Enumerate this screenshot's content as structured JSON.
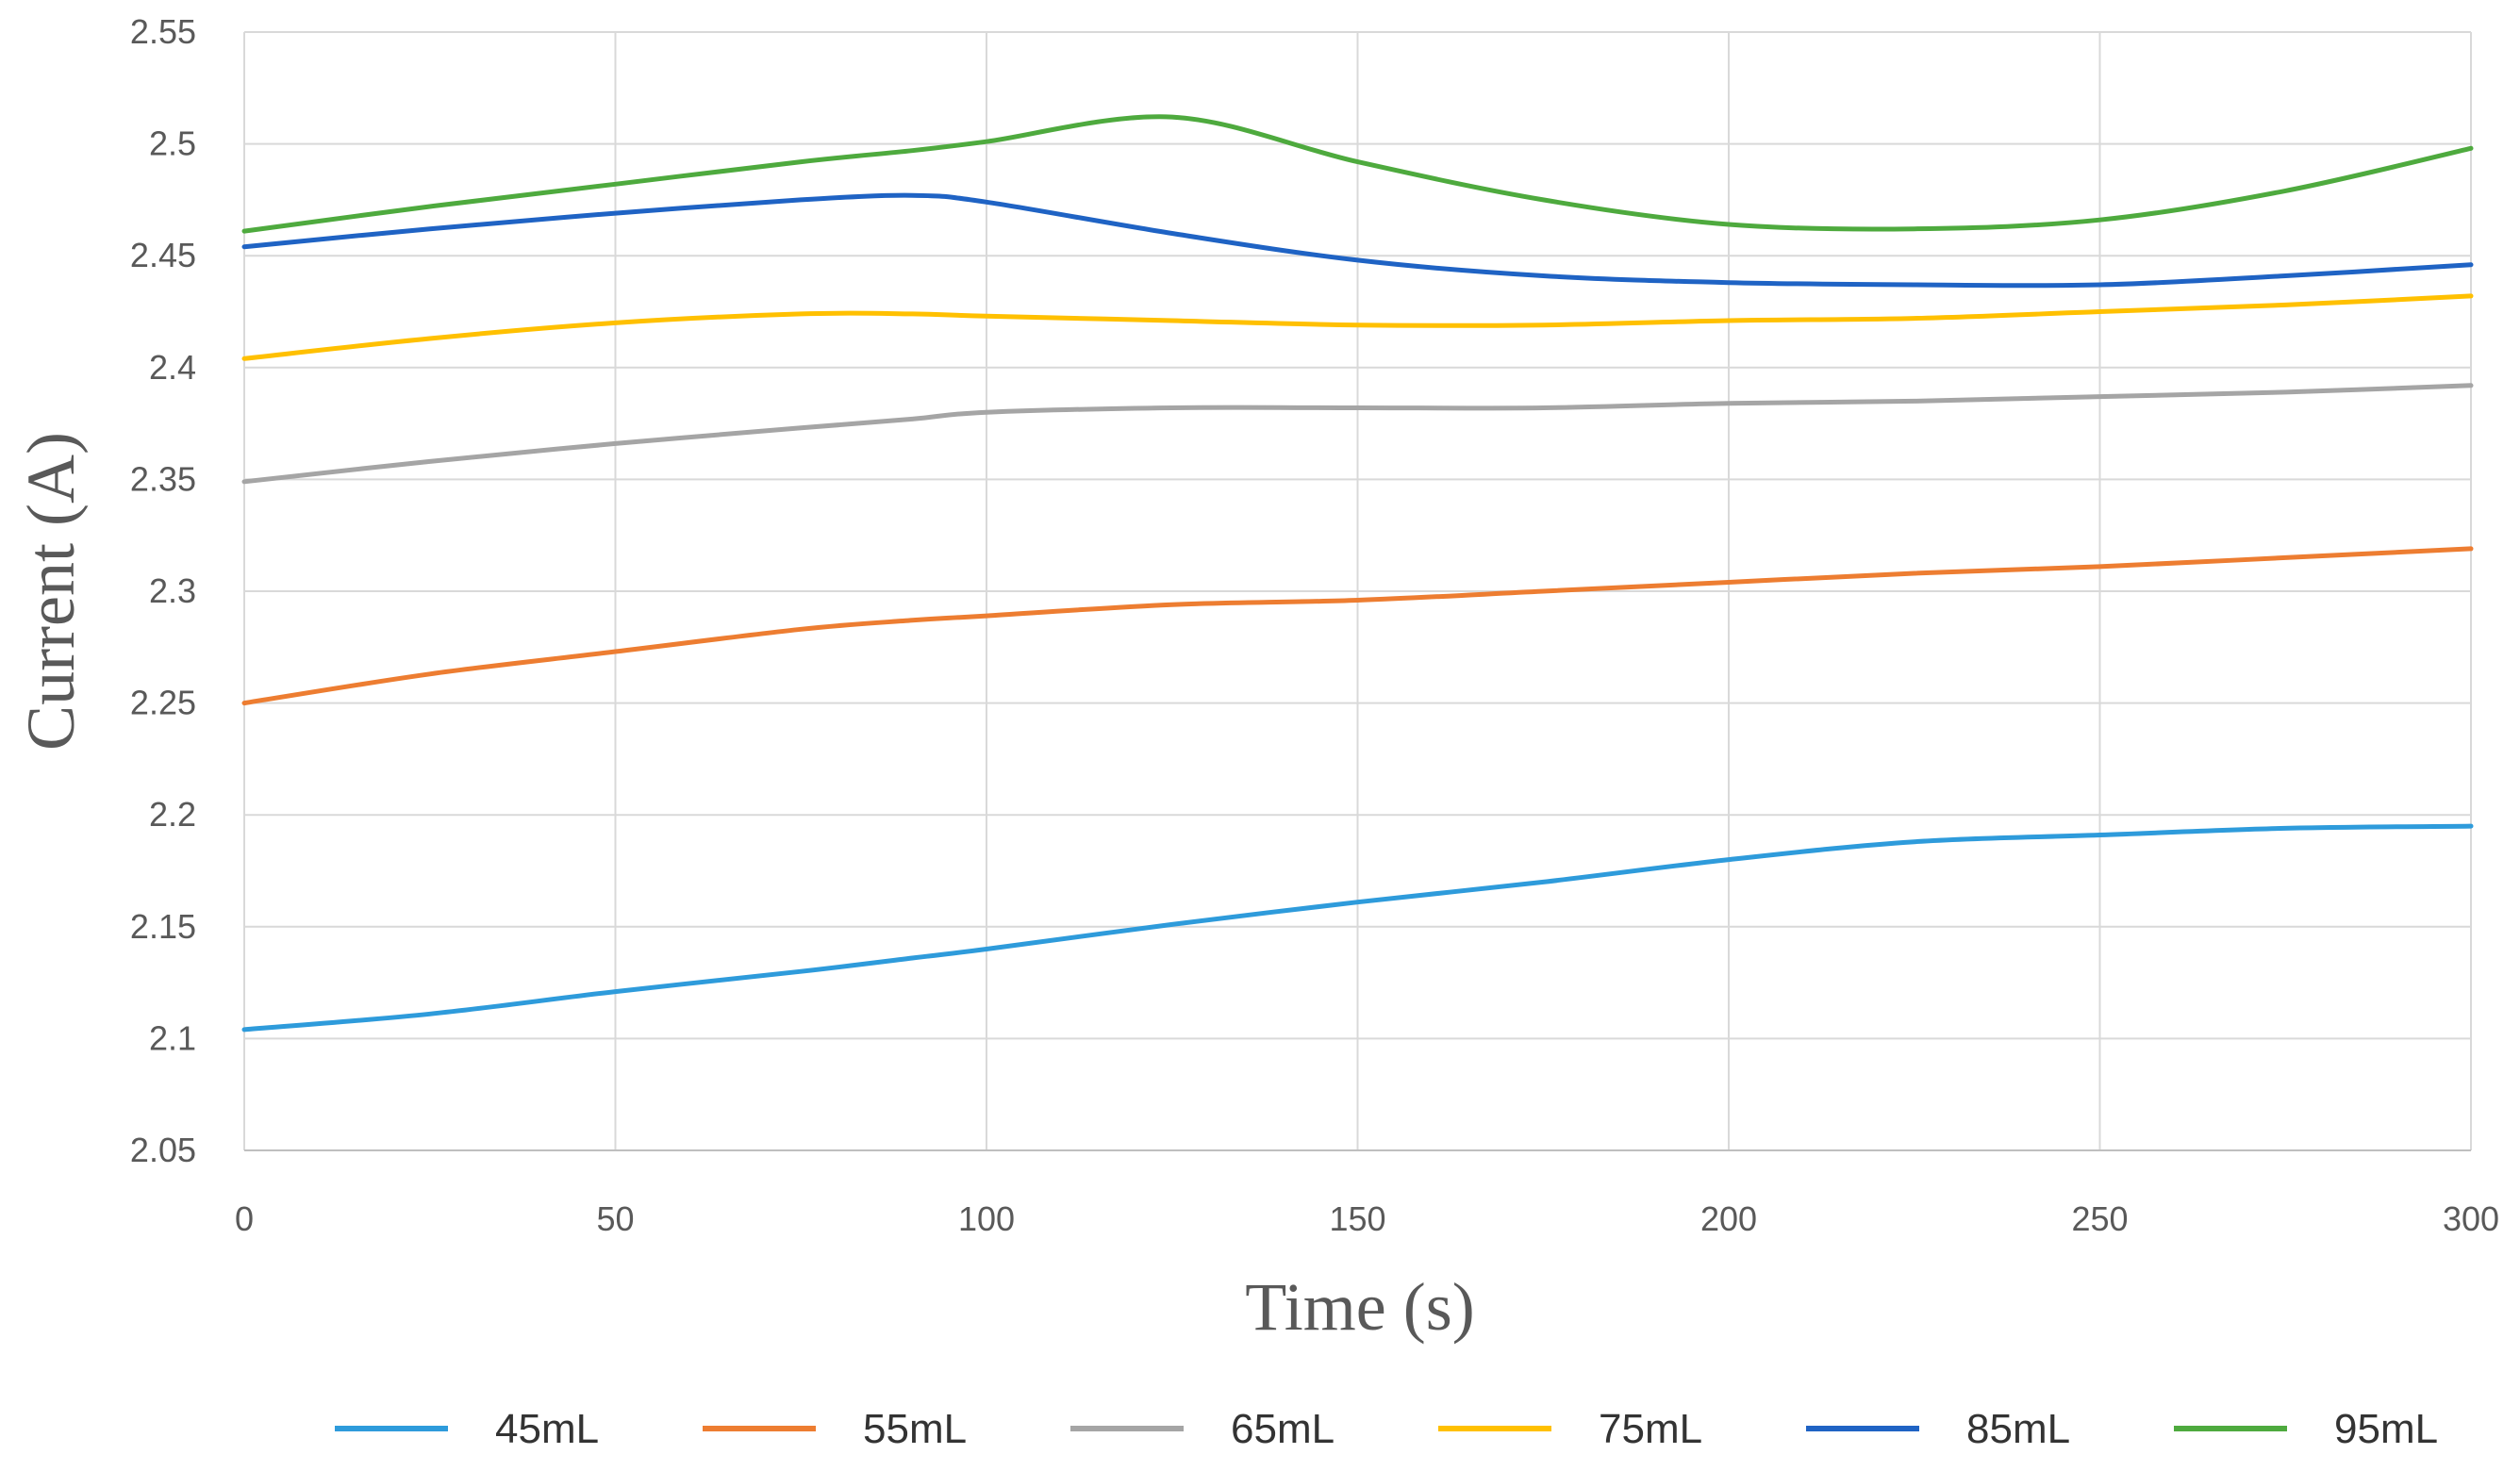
{
  "chart_data": {
    "type": "line",
    "title": "",
    "xlabel": "Time (s)",
    "ylabel": "Current (A)",
    "xlim": [
      0,
      300
    ],
    "ylim": [
      2.05,
      2.55
    ],
    "x_ticks": [
      0,
      50,
      100,
      150,
      200,
      250,
      300
    ],
    "x_tick_labels": [
      "0",
      "50",
      "100",
      "150",
      "200",
      "250",
      "300"
    ],
    "y_ticks": [
      2.05,
      2.1,
      2.15,
      2.2,
      2.25,
      2.3,
      2.35,
      2.4,
      2.45,
      2.5,
      2.55
    ],
    "y_tick_labels": [
      "2.05",
      "2.1",
      "2.15",
      "2.2",
      "2.25",
      "2.3",
      "2.35",
      "2.4",
      "2.45",
      "2.5",
      "2.55"
    ],
    "grid": "vertical-and-horizontal",
    "legend_position": "bottom",
    "x": [
      0,
      25,
      50,
      75,
      90,
      100,
      125,
      150,
      175,
      200,
      225,
      250,
      275,
      300
    ],
    "series": [
      {
        "name": "45mL",
        "color": "#2E9BDB",
        "values": [
          2.104,
          2.111,
          2.121,
          2.13,
          2.136,
          2.14,
          2.151,
          2.161,
          2.17,
          2.18,
          2.188,
          2.191,
          2.194,
          2.195
        ]
      },
      {
        "name": "55mL",
        "color": "#ED7D31",
        "values": [
          2.25,
          2.263,
          2.273,
          2.283,
          2.287,
          2.289,
          2.294,
          2.296,
          2.3,
          2.304,
          2.308,
          2.311,
          2.315,
          2.319
        ]
      },
      {
        "name": "65mL",
        "color": "#A5A5A5",
        "values": [
          2.349,
          2.358,
          2.366,
          2.373,
          2.377,
          2.38,
          2.382,
          2.382,
          2.382,
          2.384,
          2.385,
          2.387,
          2.389,
          2.392
        ]
      },
      {
        "name": "75mL",
        "color": "#FFC000",
        "values": [
          2.404,
          2.413,
          2.42,
          2.424,
          2.424,
          2.423,
          2.421,
          2.419,
          2.419,
          2.421,
          2.422,
          2.425,
          2.428,
          2.432
        ]
      },
      {
        "name": "85mL",
        "color": "#1F63C4",
        "values": [
          2.454,
          2.462,
          2.469,
          2.475,
          2.477,
          2.474,
          2.46,
          2.448,
          2.441,
          2.438,
          2.437,
          2.437,
          2.441,
          2.446
        ]
      },
      {
        "name": "95mL",
        "color": "#4EAA3E",
        "values": [
          2.461,
          2.472,
          2.482,
          2.492,
          2.497,
          2.501,
          2.512,
          2.492,
          2.475,
          2.464,
          2.462,
          2.466,
          2.479,
          2.498
        ]
      }
    ]
  }
}
